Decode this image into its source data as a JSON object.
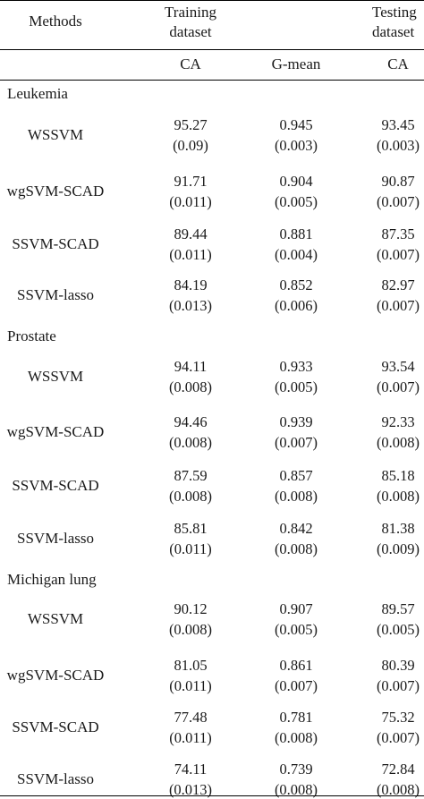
{
  "header": {
    "methods": "Methods",
    "training_line1": "Training",
    "training_line2": "dataset",
    "testing_line1": "Testing",
    "testing_line2": "dataset",
    "col_ca": "CA",
    "col_gmean": "G-mean",
    "col_test_ca": "CA"
  },
  "groups": [
    {
      "name": "Leukemia",
      "rows": [
        {
          "method": "WSSVM",
          "ca": "95.27",
          "ca_se": "(0.09)",
          "g": "0.945",
          "g_se": "(0.003)",
          "tca": "93.45",
          "tca_se": "(0.003)"
        },
        {
          "method": "wgSVM-SCAD",
          "ca": "91.71",
          "ca_se": "(0.011)",
          "g": "0.904",
          "g_se": "(0.005)",
          "tca": "90.87",
          "tca_se": "(0.007)"
        },
        {
          "method": "SSVM-SCAD",
          "ca": "89.44",
          "ca_se": "(0.011)",
          "g": "0.881",
          "g_se": "(0.004)",
          "tca": "87.35",
          "tca_se": "(0.007)"
        },
        {
          "method": "SSVM-lasso",
          "ca": "84.19",
          "ca_se": "(0.013)",
          "g": "0.852",
          "g_se": "(0.006)",
          "tca": "82.97",
          "tca_se": "(0.007)"
        }
      ]
    },
    {
      "name": "Prostate",
      "rows": [
        {
          "method": "WSSVM",
          "ca": "94.11",
          "ca_se": "(0.008)",
          "g": "0.933",
          "g_se": "(0.005)",
          "tca": "93.54",
          "tca_se": "(0.007)"
        },
        {
          "method": "wgSVM-SCAD",
          "ca": "94.46",
          "ca_se": "(0.008)",
          "g": "0.939",
          "g_se": "(0.007)",
          "tca": "92.33",
          "tca_se": "(0.008)"
        },
        {
          "method": "SSVM-SCAD",
          "ca": "87.59",
          "ca_se": "(0.008)",
          "g": "0.857",
          "g_se": "(0.008)",
          "tca": "85.18",
          "tca_se": "(0.008)"
        },
        {
          "method": "SSVM-lasso",
          "ca": "85.81",
          "ca_se": "(0.011)",
          "g": "0.842",
          "g_se": "(0.008)",
          "tca": "81.38",
          "tca_se": "(0.009)"
        }
      ]
    },
    {
      "name": "Michigan lung",
      "rows": [
        {
          "method": "WSSVM",
          "ca": "90.12",
          "ca_se": "(0.008)",
          "g": "0.907",
          "g_se": "(0.005)",
          "tca": "89.57",
          "tca_se": "(0.005)"
        },
        {
          "method": "wgSVM-SCAD",
          "ca": "81.05",
          "ca_se": "(0.011)",
          "g": "0.861",
          "g_se": "(0.007)",
          "tca": "80.39",
          "tca_se": "(0.007)"
        },
        {
          "method": "SSVM-SCAD",
          "ca": "77.48",
          "ca_se": "(0.011)",
          "g": "0.781",
          "g_se": "(0.008)",
          "tca": "75.32",
          "tca_se": "(0.007)"
        },
        {
          "method": "SSVM-lasso",
          "ca": "74.11",
          "ca_se": "(0.013)",
          "g": "0.739",
          "g_se": "(0.008)",
          "tca": "72.84",
          "tca_se": "(0.008)"
        }
      ]
    }
  ]
}
